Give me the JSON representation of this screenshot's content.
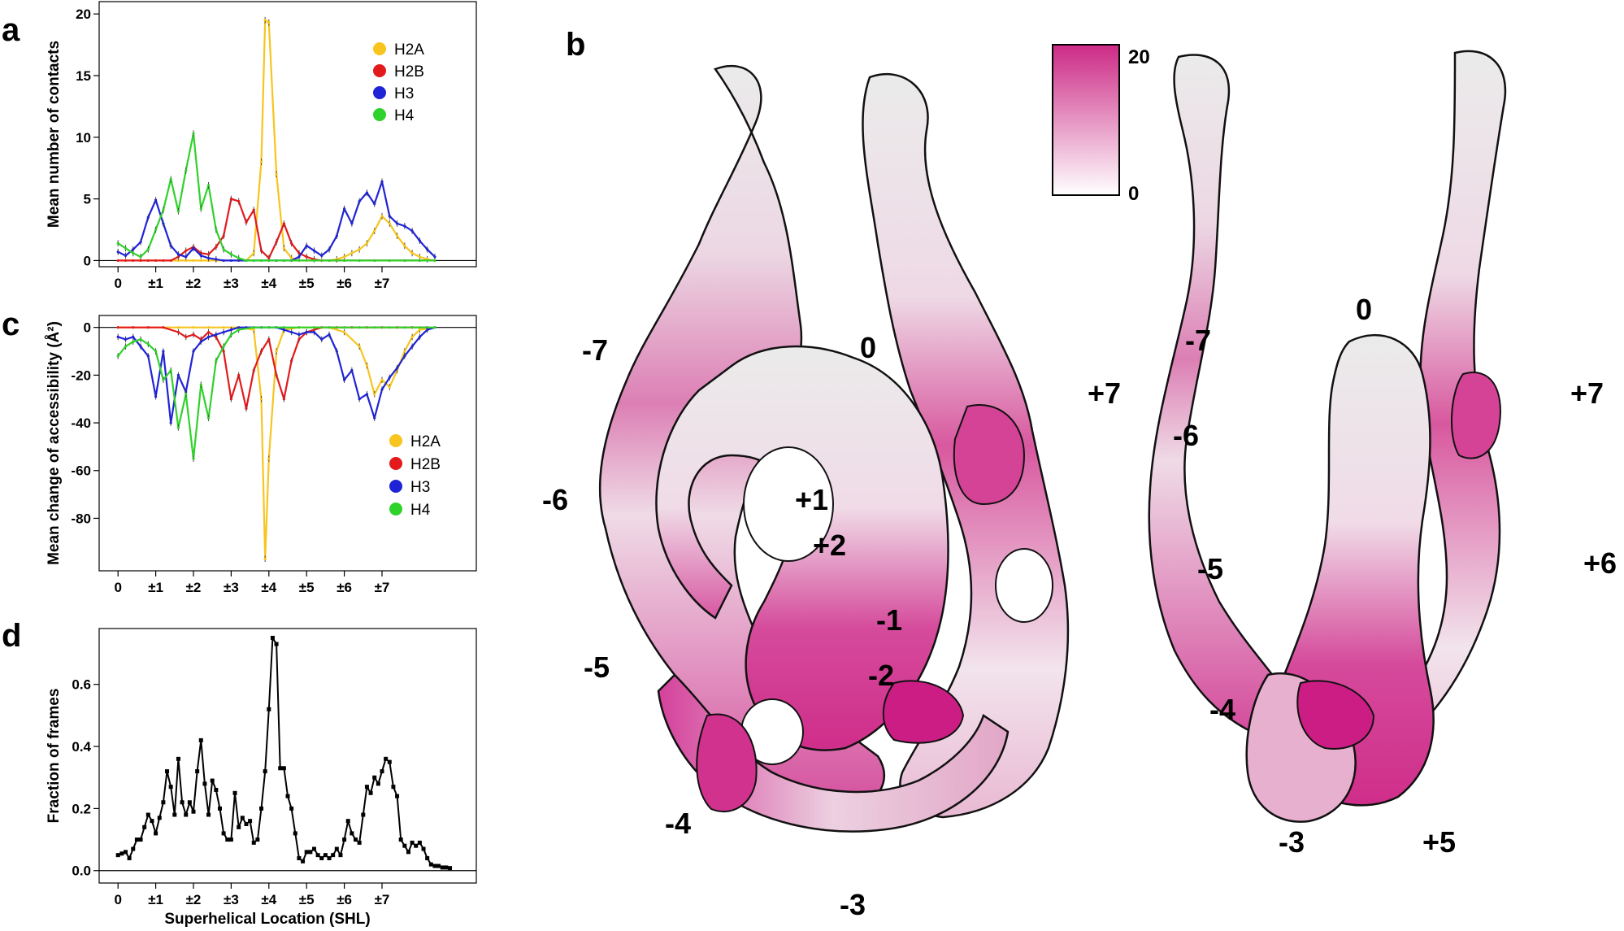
{
  "colors": {
    "H2A": "#f7c51e",
    "H2B": "#e31a1c",
    "H3": "#1f23d6",
    "H4": "#2fd22a",
    "frames": "#000000",
    "dna_neutral": "#f2f2f2",
    "dna_max": "#d41c8c"
  },
  "panels": {
    "a": "a",
    "b": "b",
    "c": "c",
    "d": "d"
  },
  "x_ticks": [
    "0",
    "±1",
    "±2",
    "±3",
    "±4",
    "±5",
    "±6",
    "±7"
  ],
  "chart_data": [
    {
      "id": "a",
      "type": "line",
      "xlabel": "",
      "ylabel": "Mean number of contacts",
      "ylim": [
        -0.5,
        21
      ],
      "y_ticks": [
        "0",
        "5",
        "10",
        "15",
        "20"
      ],
      "xlim": [
        -0.5,
        9.5
      ],
      "error_bars": true,
      "legend": {
        "placement": "top-right",
        "entries": [
          "H2A",
          "H2B",
          "H3",
          "H4"
        ]
      },
      "series": [
        {
          "name": "H2A",
          "color_key": "H2A",
          "x": [
            0,
            0.2,
            0.4,
            0.6,
            0.8,
            1,
            1.2,
            1.4,
            1.6,
            1.8,
            2,
            2.2,
            2.4,
            2.6,
            2.8,
            3,
            3.2,
            3.4,
            3.6,
            3.8,
            3.9,
            4,
            4.2,
            4.4,
            4.6,
            4.8,
            5,
            5.2,
            5.4,
            5.6,
            5.8,
            6,
            6.2,
            6.4,
            6.6,
            6.8,
            7,
            7.2,
            7.4,
            7.6,
            7.8,
            8,
            8.2,
            8.4
          ],
          "y": [
            0,
            0,
            0,
            0,
            0,
            0,
            0,
            0,
            0,
            0,
            0,
            0,
            0,
            0,
            0,
            0,
            0,
            0,
            0.6,
            8,
            19.5,
            19.3,
            7,
            1,
            0.2,
            0,
            0,
            0,
            0,
            0,
            0.1,
            0.3,
            0.6,
            0.9,
            1.4,
            2.4,
            3.6,
            3.0,
            2.0,
            1.2,
            0.6,
            0.3,
            0.1,
            0
          ]
        },
        {
          "name": "H2B",
          "color_key": "H2B",
          "x": [
            0,
            0.2,
            0.4,
            0.6,
            0.8,
            1,
            1.2,
            1.4,
            1.6,
            1.8,
            2,
            2.2,
            2.4,
            2.6,
            2.8,
            3,
            3.2,
            3.4,
            3.6,
            3.8,
            4,
            4.2,
            4.4,
            4.6,
            4.8,
            5,
            5.2,
            5.4,
            5.6,
            5.8,
            6,
            6.4,
            6.8,
            7.2,
            7.6,
            8,
            8.4
          ],
          "y": [
            0,
            0,
            0,
            0,
            0,
            0,
            0,
            0,
            0.3,
            0.8,
            1.1,
            0.6,
            0.5,
            1.1,
            2.0,
            5.0,
            4.8,
            3.1,
            4.1,
            0.8,
            0.2,
            1.5,
            3.0,
            1.4,
            0.6,
            0.3,
            0.1,
            0,
            0,
            0,
            0,
            0,
            0,
            0,
            0,
            0,
            0
          ]
        },
        {
          "name": "H3",
          "color_key": "H3",
          "x": [
            0,
            0.2,
            0.4,
            0.6,
            0.8,
            1,
            1.2,
            1.4,
            1.6,
            1.8,
            2,
            2.2,
            2.4,
            2.6,
            2.8,
            3,
            3.2,
            3.4,
            3.6,
            3.8,
            4,
            4.2,
            4.4,
            4.6,
            4.8,
            5,
            5.2,
            5.4,
            5.6,
            5.8,
            6,
            6.2,
            6.4,
            6.6,
            6.8,
            7,
            7.2,
            7.4,
            7.6,
            7.8,
            8,
            8.2,
            8.4
          ],
          "y": [
            0.7,
            0.4,
            0.9,
            1.5,
            3.5,
            4.9,
            3.0,
            1.2,
            0.5,
            0.3,
            1.0,
            0.4,
            0.2,
            0.1,
            0,
            0,
            0,
            0,
            0,
            0,
            0,
            0,
            0,
            0,
            0.3,
            1.2,
            0.8,
            0.4,
            0.9,
            2.0,
            4.2,
            3.0,
            4.8,
            5.5,
            4.6,
            6.4,
            3.6,
            3.0,
            2.8,
            2.4,
            1.6,
            0.9,
            0.3
          ]
        },
        {
          "name": "H4",
          "color_key": "H4",
          "x": [
            0,
            0.2,
            0.4,
            0.6,
            0.8,
            1,
            1.2,
            1.4,
            1.6,
            1.8,
            2,
            2.2,
            2.4,
            2.6,
            2.8,
            3,
            3.2,
            3.4,
            3.6,
            3.8,
            4,
            4.4,
            4.8,
            5.2,
            5.6,
            6,
            6.4,
            6.8,
            7.2,
            7.6,
            8,
            8.4
          ],
          "y": [
            1.4,
            1.0,
            0.6,
            0.3,
            0.9,
            2.5,
            4.1,
            6.6,
            4.0,
            7.3,
            10.3,
            4.2,
            6.1,
            2.5,
            0.9,
            0.5,
            0.2,
            0,
            0,
            0,
            0,
            0,
            0,
            0,
            0,
            0,
            0,
            0,
            0,
            0,
            0,
            0
          ]
        }
      ]
    },
    {
      "id": "c",
      "type": "line",
      "xlabel": "",
      "ylabel": "Mean change of accessibility (Å²)",
      "ylim": [
        -102,
        5
      ],
      "y_ticks": [
        "0",
        "-20",
        "-40",
        "-60",
        "-80"
      ],
      "xlim": [
        -0.5,
        9.5
      ],
      "error_bars": true,
      "legend": {
        "placement": "bottom-right",
        "entries": [
          "H2A",
          "H2B",
          "H3",
          "H4"
        ]
      },
      "series": [
        {
          "name": "H2A",
          "color_key": "H2A",
          "x": [
            0,
            0.4,
            0.8,
            1.2,
            1.6,
            2,
            2.4,
            2.8,
            3.2,
            3.6,
            3.8,
            3.9,
            4,
            4.2,
            4.4,
            4.8,
            5.2,
            5.6,
            6,
            6.4,
            6.6,
            6.8,
            7,
            7.2,
            7.4,
            7.6,
            7.8,
            8,
            8.4
          ],
          "y": [
            0,
            0,
            0,
            0,
            0,
            0,
            0,
            0,
            0,
            -1,
            -30,
            -97,
            -55,
            -10,
            -1,
            0,
            0,
            0,
            -2,
            -8,
            -16,
            -28,
            -22,
            -25,
            -18,
            -10,
            -4,
            -1,
            0
          ]
        },
        {
          "name": "H2B",
          "color_key": "H2B",
          "x": [
            0,
            0.4,
            0.8,
            1.2,
            1.6,
            1.8,
            2,
            2.2,
            2.4,
            2.6,
            2.8,
            3,
            3.2,
            3.4,
            3.6,
            3.8,
            4,
            4.2,
            4.4,
            4.6,
            4.8,
            5,
            5.4,
            5.8,
            6.2,
            6.6,
            7,
            7.4,
            7.8,
            8.2
          ],
          "y": [
            0,
            0,
            0,
            0,
            -2,
            -4,
            -3,
            -5,
            -2,
            -4,
            -10,
            -30,
            -20,
            -34,
            -18,
            -10,
            -5,
            -20,
            -30,
            -14,
            -5,
            -2,
            0,
            0,
            0,
            0,
            0,
            0,
            0,
            0
          ]
        },
        {
          "name": "H3",
          "color_key": "H3",
          "x": [
            0,
            0.2,
            0.4,
            0.6,
            0.8,
            1,
            1.2,
            1.4,
            1.6,
            1.8,
            2,
            2.2,
            2.4,
            2.6,
            2.8,
            3,
            3.2,
            3.4,
            3.6,
            3.8,
            4,
            4.2,
            4.4,
            4.6,
            4.8,
            5,
            5.2,
            5.4,
            5.6,
            5.8,
            6,
            6.2,
            6.4,
            6.6,
            6.8,
            7,
            7.2,
            7.4,
            7.6,
            7.8,
            8,
            8.2,
            8.4
          ],
          "y": [
            -4,
            -5,
            -4,
            -8,
            -12,
            -29,
            -10,
            -40,
            -20,
            -27,
            -10,
            -6,
            -4,
            -3,
            -2,
            -1,
            0,
            0,
            0,
            0,
            0,
            0,
            -1,
            -2,
            -3,
            -2,
            -2,
            -5,
            -3,
            -10,
            -22,
            -18,
            -30,
            -28,
            -38,
            -26,
            -21,
            -17,
            -12,
            -8,
            -4,
            -1,
            0
          ]
        },
        {
          "name": "H4",
          "color_key": "H4",
          "x": [
            0,
            0.2,
            0.4,
            0.6,
            0.8,
            1,
            1.2,
            1.4,
            1.6,
            1.8,
            2,
            2.2,
            2.4,
            2.6,
            2.8,
            3,
            3.2,
            3.6,
            4,
            4.4,
            4.8,
            5.2,
            5.6,
            6,
            6.4,
            6.8,
            7.2,
            7.6,
            8,
            8.4
          ],
          "y": [
            -12,
            -8,
            -6,
            -5,
            -7,
            -10,
            -22,
            -18,
            -42,
            -28,
            -55,
            -24,
            -38,
            -14,
            -8,
            -3,
            -1,
            0,
            0,
            0,
            0,
            0,
            0,
            0,
            0,
            0,
            0,
            0,
            0,
            0
          ]
        }
      ]
    },
    {
      "id": "d",
      "type": "line",
      "xlabel": "Superhelical Location (SHL)",
      "ylabel": "Fraction of frames",
      "ylim": [
        -0.04,
        0.78
      ],
      "y_ticks": [
        "0.0",
        "0.2",
        "0.4",
        "0.6"
      ],
      "xlim": [
        -0.5,
        9.5
      ],
      "series": [
        {
          "name": "",
          "color_key": "frames",
          "x": [
            0,
            0.1,
            0.2,
            0.3,
            0.4,
            0.5,
            0.6,
            0.7,
            0.8,
            0.9,
            1,
            1.1,
            1.2,
            1.3,
            1.4,
            1.5,
            1.6,
            1.7,
            1.8,
            1.9,
            2,
            2.1,
            2.2,
            2.3,
            2.4,
            2.5,
            2.6,
            2.7,
            2.8,
            2.9,
            3,
            3.1,
            3.2,
            3.3,
            3.4,
            3.5,
            3.6,
            3.7,
            3.8,
            3.9,
            4,
            4.1,
            4.2,
            4.3,
            4.4,
            4.5,
            4.6,
            4.7,
            4.8,
            4.9,
            5,
            5.1,
            5.2,
            5.3,
            5.4,
            5.5,
            5.6,
            5.7,
            5.8,
            5.9,
            6,
            6.1,
            6.2,
            6.3,
            6.4,
            6.5,
            6.6,
            6.7,
            6.8,
            6.9,
            7,
            7.1,
            7.2,
            7.3,
            7.4,
            7.5,
            7.6,
            7.7,
            7.8,
            7.9,
            8,
            8.1,
            8.2,
            8.3,
            8.4,
            8.5,
            8.6,
            8.7,
            8.8
          ],
          "y": [
            0.05,
            0.055,
            0.06,
            0.04,
            0.07,
            0.1,
            0.1,
            0.14,
            0.18,
            0.16,
            0.12,
            0.17,
            0.22,
            0.32,
            0.27,
            0.18,
            0.36,
            0.22,
            0.18,
            0.22,
            0.19,
            0.32,
            0.42,
            0.28,
            0.18,
            0.29,
            0.26,
            0.2,
            0.12,
            0.1,
            0.1,
            0.25,
            0.14,
            0.17,
            0.15,
            0.16,
            0.09,
            0.1,
            0.2,
            0.32,
            0.52,
            0.75,
            0.73,
            0.33,
            0.33,
            0.24,
            0.2,
            0.12,
            0.04,
            0.03,
            0.06,
            0.06,
            0.07,
            0.05,
            0.04,
            0.05,
            0.04,
            0.05,
            0.07,
            0.05,
            0.1,
            0.16,
            0.12,
            0.1,
            0.09,
            0.18,
            0.27,
            0.25,
            0.3,
            0.28,
            0.32,
            0.36,
            0.35,
            0.27,
            0.24,
            0.1,
            0.08,
            0.06,
            0.09,
            0.08,
            0.09,
            0.07,
            0.04,
            0.02,
            0.015,
            0.015,
            0.01,
            0.01,
            0.008
          ]
        }
      ]
    }
  ],
  "panel_b": {
    "scale": {
      "max": "20",
      "min": "0"
    },
    "left_labels": [
      "-7",
      "0",
      "+7",
      "-6",
      "+1",
      "+2",
      "-1",
      "-5",
      "-2",
      "-4",
      "-3"
    ],
    "right_labels": [
      "-7",
      "0",
      "+7",
      "-6",
      "-5",
      "+6",
      "-4",
      "-3",
      "+5"
    ]
  }
}
